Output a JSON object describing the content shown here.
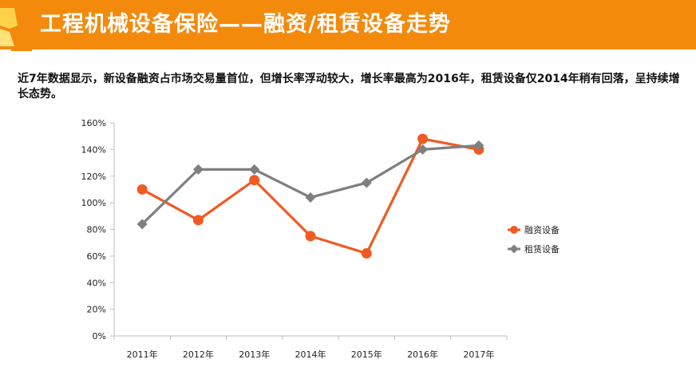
{
  "header": {
    "title": "工程机械设备保险——融资/租赁设备走势"
  },
  "description": "近7年数据显示，新设备融资占市场交易量首位，但增长率浮动较大，增长率最高为2016年，租赁设备仅2014年稍有回落，呈持续增长态势。",
  "colors": {
    "header_background": "#f38a0c",
    "financing_series": "#f05a23",
    "leasing_series": "#7f7f7f",
    "axis": "#bfbfbf"
  },
  "chart_data": {
    "type": "line",
    "categories": [
      "2011年",
      "2012年",
      "2013年",
      "2014年",
      "2015年",
      "2016年",
      "2017年"
    ],
    "ylim": [
      0,
      160
    ],
    "yticks": [
      "0%",
      "20%",
      "40%",
      "60%",
      "80%",
      "100%",
      "120%",
      "140%",
      "160%"
    ],
    "grid": false,
    "legend_position": "right",
    "series": [
      {
        "name": "融资设备",
        "marker": "circle",
        "color": "#f05a23",
        "values": [
          110,
          87,
          117,
          75,
          62,
          148,
          140
        ]
      },
      {
        "name": "租赁设备",
        "marker": "diamond",
        "color": "#7f7f7f",
        "values": [
          84,
          125,
          125,
          104,
          115,
          140,
          143
        ]
      }
    ]
  }
}
